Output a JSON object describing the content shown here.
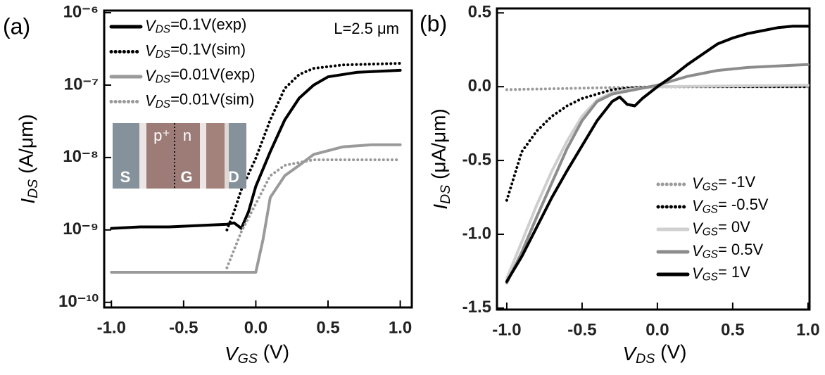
{
  "chart_data": [
    {
      "type": "line",
      "panel_label": "(a)",
      "xlabel": "VGS (V)",
      "ylabel": "IDS (A/μm)",
      "annotation": "L=2.5 μm",
      "inset_labels": [
        "p⁺",
        "n",
        "S",
        "G",
        "D"
      ],
      "xlim": [
        -1.05,
        1.08
      ],
      "ylim": [
        8.5e-11,
        1.07e-06
      ],
      "ylog": true,
      "legend": "upper left",
      "xticks": [
        {
          "value": -1,
          "label": "-1.0"
        },
        -0.5,
        {
          "value": 0,
          "label": "0.0"
        },
        0.5,
        {
          "value": 1,
          "label": "1.0"
        }
      ],
      "yticks": [
        {
          "value": 1e-10,
          "label": "10⁻¹⁰"
        },
        {
          "value": 1e-09,
          "label": "10⁻⁹"
        },
        {
          "value": 1e-08,
          "label": "10⁻⁸"
        },
        {
          "value": 1e-07,
          "label": "10⁻⁷"
        },
        {
          "value": 1e-06,
          "label": "10⁻⁶"
        }
      ],
      "series": [
        {
          "name": "VDS=0.1V(exp)",
          "color": "#000000",
          "linestyle": "solid",
          "linewidth": 4,
          "x": [
            -1,
            -0.8,
            -0.6,
            -0.4,
            -0.2,
            -0.15,
            -0.1,
            -0.05,
            0,
            0.1,
            0.2,
            0.3,
            0.4,
            0.5,
            0.7,
            1.0
          ],
          "values": [
            1.05e-09,
            1.1e-09,
            1.1e-09,
            1.15e-09,
            1.2e-09,
            1.25e-09,
            1.05e-09,
            1.8e-09,
            4e-09,
            1.2e-08,
            3.3e-08,
            6.6e-08,
            1e-07,
            1.3e-07,
            1.5e-07,
            1.6e-07
          ]
        },
        {
          "name": "VDS=0.1V(sim)",
          "color": "#000000",
          "linestyle": "dotted",
          "linewidth": 4,
          "x": [
            -0.2,
            -0.15,
            -0.1,
            0,
            0.1,
            0.2,
            0.3,
            0.4,
            0.6,
            1.0
          ],
          "values": [
            1e-09,
            1.8e-09,
            3.6e-09,
            9.8e-09,
            3.3e-08,
            9e-08,
            1.4e-07,
            1.7e-07,
            1.9e-07,
            2e-07
          ]
        },
        {
          "name": "VDS=0.01V(exp)",
          "color": "#9a9a9a",
          "linestyle": "solid",
          "linewidth": 4,
          "x": [
            -1,
            -0.5,
            0,
            0.05,
            0.1,
            0.2,
            0.3,
            0.4,
            0.6,
            0.8,
            1.0
          ],
          "values": [
            2.6e-10,
            2.6e-10,
            2.6e-10,
            7.4e-10,
            2.8e-09,
            5.6e-09,
            7.8e-09,
            1.1e-08,
            1.4e-08,
            1.5e-08,
            1.5e-08
          ]
        },
        {
          "name": "VDS=0.01V(sim)",
          "color": "#9a9a9a",
          "linestyle": "dotted",
          "linewidth": 4,
          "x": [
            -0.2,
            -0.1,
            0,
            0.1,
            0.2,
            0.4,
            1.0
          ],
          "values": [
            3e-10,
            9.5e-10,
            2.3e-09,
            5.6e-09,
            7.8e-09,
            9.3e-09,
            9.3e-09
          ]
        }
      ]
    },
    {
      "type": "line",
      "panel_label": "(b)",
      "xlabel": "VDS (V)",
      "ylabel": "IDS (μA/μm)",
      "xlim": [
        -1.065,
        1.01
      ],
      "ylim": [
        -1.51,
        0.53
      ],
      "legend": "lower right",
      "xticks": [
        {
          "value": -1,
          "label": "-1.0"
        },
        -0.5,
        {
          "value": 0,
          "label": "0.0"
        },
        0.5,
        {
          "value": 1,
          "label": "1.0"
        }
      ],
      "yticks": [
        -1.5,
        {
          "value": -1,
          "label": "-1.0"
        },
        -0.5,
        {
          "value": 0,
          "label": "0.0"
        },
        0.5
      ],
      "series": [
        {
          "name": "VGS= -1V",
          "color": "#9a9a9a",
          "linestyle": "dotted",
          "linewidth": 4,
          "x": [
            -1,
            -0.5,
            0,
            1.0
          ],
          "values": [
            -0.02,
            -0.01,
            0,
            0
          ]
        },
        {
          "name": "VGS= -0.5V",
          "color": "#000000",
          "linestyle": "dotted",
          "linewidth": 4,
          "x": [
            -1,
            -0.9,
            -0.8,
            -0.7,
            -0.6,
            -0.5,
            -0.4,
            -0.3,
            -0.2,
            0,
            1.0
          ],
          "values": [
            -0.77,
            -0.44,
            -0.3,
            -0.2,
            -0.13,
            -0.08,
            -0.05,
            -0.02,
            -0.01,
            0,
            0
          ]
        },
        {
          "name": "VGS= 0V",
          "color": "#cfcfcf",
          "linestyle": "solid",
          "linewidth": 4,
          "x": [
            -1,
            -0.9,
            -0.8,
            -0.7,
            -0.6,
            -0.5,
            -0.4,
            -0.3,
            -0.2,
            0,
            1.0
          ],
          "values": [
            -1.3,
            -1.05,
            -0.8,
            -0.57,
            -0.37,
            -0.2,
            -0.09,
            -0.04,
            -0.02,
            0,
            0.01
          ]
        },
        {
          "name": "VGS= 0.5V",
          "color": "#8c8c8c",
          "linestyle": "solid",
          "linewidth": 4,
          "x": [
            -1,
            -0.9,
            -0.8,
            -0.7,
            -0.6,
            -0.5,
            -0.4,
            -0.3,
            -0.2,
            -0.1,
            0,
            0.2,
            0.4,
            0.6,
            0.8,
            1.0
          ],
          "values": [
            -1.33,
            -1.12,
            -0.88,
            -0.65,
            -0.42,
            -0.23,
            -0.1,
            -0.05,
            -0.03,
            -0.01,
            0.01,
            0.07,
            0.11,
            0.13,
            0.14,
            0.15
          ]
        },
        {
          "name": "VGS= 1V",
          "color": "#000000",
          "linestyle": "solid",
          "linewidth": 4,
          "x": [
            -1,
            -0.9,
            -0.8,
            -0.7,
            -0.6,
            -0.5,
            -0.4,
            -0.3,
            -0.25,
            -0.2,
            -0.15,
            -0.1,
            0,
            0.1,
            0.2,
            0.3,
            0.4,
            0.5,
            0.6,
            0.7,
            0.8,
            0.9,
            1.0
          ],
          "values": [
            -1.32,
            -1.15,
            -0.95,
            -0.75,
            -0.57,
            -0.4,
            -0.23,
            -0.1,
            -0.07,
            -0.12,
            -0.13,
            -0.08,
            0,
            0.07,
            0.15,
            0.22,
            0.29,
            0.33,
            0.36,
            0.38,
            0.4,
            0.41,
            0.41
          ]
        }
      ]
    }
  ]
}
